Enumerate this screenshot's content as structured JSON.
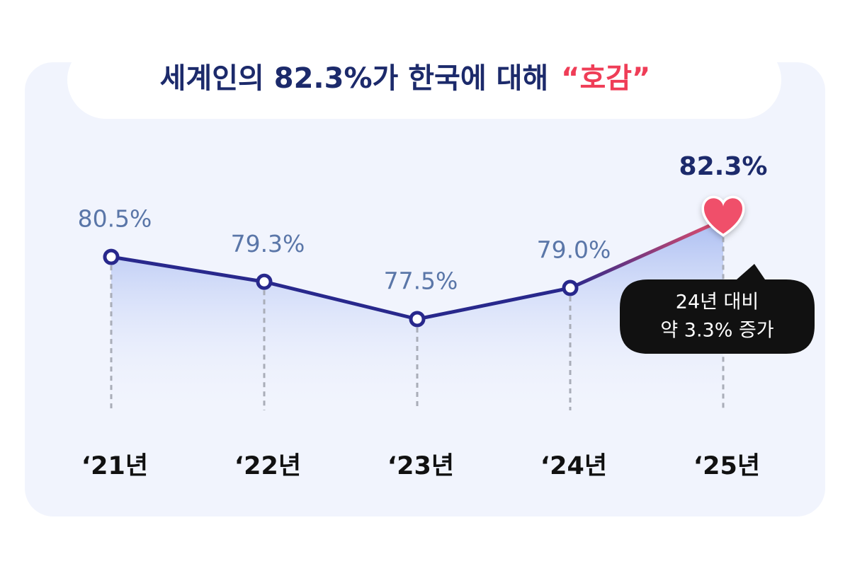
{
  "chart_data": {
    "type": "line",
    "title": "세계인의 82.3%가 한국에 대해",
    "title_highlight": "“호감”",
    "categories": [
      "‘21년",
      "‘22년",
      "‘23년",
      "‘24년",
      "‘25년"
    ],
    "values": [
      80.5,
      79.3,
      77.5,
      79.0,
      82.3
    ],
    "value_labels": [
      "80.5%",
      "79.3%",
      "77.5%",
      "79.0%",
      "82.3%"
    ],
    "color": "#28288c",
    "highlight_color": "#f0506a",
    "annotation": [
      "24년 대비",
      "약 3.3% 증가"
    ]
  }
}
